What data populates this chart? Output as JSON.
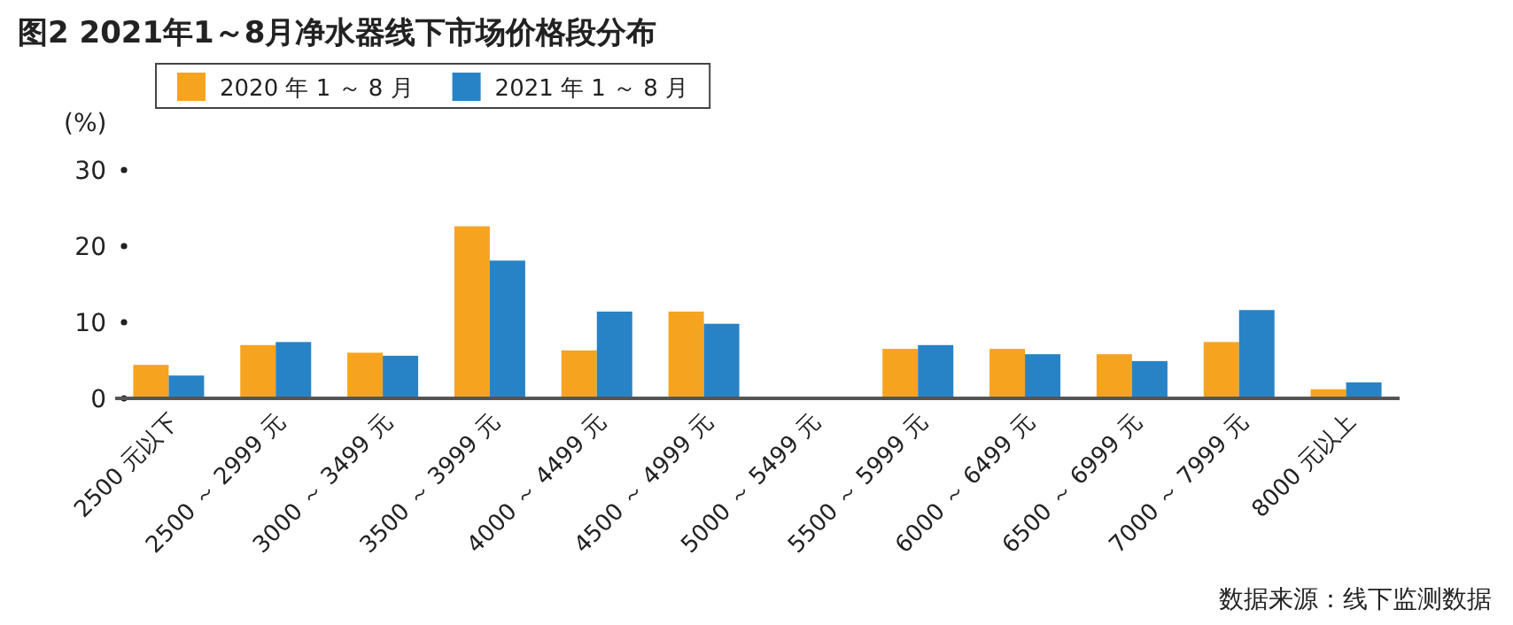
{
  "chart_data": {
    "type": "bar",
    "title": "图2  2021年1～8月净水器线下市场价格段分布",
    "ylabel": "(%)",
    "categories": [
      "2500 元以下",
      "2500 ～ 2999 元",
      "3000 ～ 3499 元",
      "3500 ～ 3999 元",
      "4000 ～ 4499 元",
      "4500 ～ 4999 元",
      "5000 ～ 5499 元",
      "5500 ～ 5999 元",
      "6000 ～ 6499 元",
      "6500 ～ 6999 元",
      "7000 ～ 7999 元",
      "8000 元以上"
    ],
    "series": [
      {
        "name": "2020 年 1 ～ 8 月",
        "color": "#f6a41f",
        "values": [
          4.4,
          7.0,
          6.0,
          22.6,
          6.3,
          11.4,
          null,
          6.5,
          6.5,
          5.8,
          7.4,
          1.2
        ]
      },
      {
        "name": "2021 年 1 ～ 8 月",
        "color": "#2883c6",
        "values": [
          3.0,
          7.4,
          5.6,
          18.1,
          11.4,
          9.8,
          null,
          7.0,
          5.8,
          4.9,
          11.6,
          2.1
        ]
      }
    ],
    "ylim": [
      0,
      30
    ],
    "yticks": [
      0,
      10,
      20,
      30
    ],
    "grid": false,
    "legend": "top",
    "annotations": [
      "数据来源：线下监测数据"
    ]
  }
}
